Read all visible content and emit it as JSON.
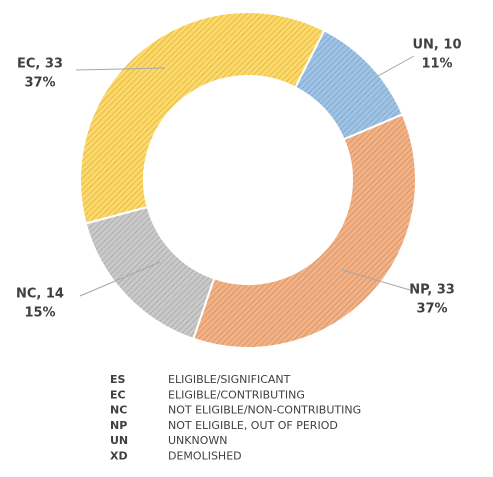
{
  "chart_data": {
    "type": "donut",
    "categories": [
      "UN",
      "NP",
      "NC",
      "EC"
    ],
    "values": [
      10,
      33,
      14,
      33
    ],
    "value_labels": [
      "UN, 10",
      "NP, 33",
      "NC, 14",
      "EC, 33"
    ],
    "percents": [
      11,
      37,
      15,
      37
    ],
    "percent_labels": [
      "11%",
      "37%",
      "15%",
      "37%"
    ],
    "colors": [
      "#9dc3e6",
      "#f4b183",
      "#c9c9c9",
      "#ffd966"
    ],
    "legend": [
      {
        "code": "ES",
        "label": "ELIGIBLE/SIGNIFICANT"
      },
      {
        "code": "EC",
        "label": "ELIGIBLE/CONTRIBUTING"
      },
      {
        "code": "NC",
        "label": "NOT ELIGIBLE/NON-CONTRIBUTING"
      },
      {
        "code": "NP",
        "label": "NOT ELIGIBLE, OUT OF PERIOD"
      },
      {
        "code": "UN",
        "label": "UNKNOWN"
      },
      {
        "code": "XD",
        "label": "DEMOLISHED"
      }
    ]
  }
}
